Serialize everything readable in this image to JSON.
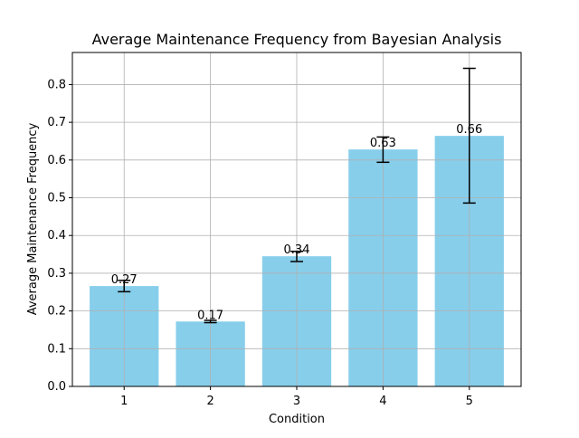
{
  "chart_data": {
    "type": "bar",
    "title": "Average Maintenance Frequency from Bayesian Analysis",
    "xlabel": "Condition",
    "ylabel": "Average Maintenance Frequency",
    "categories": [
      "1",
      "2",
      "3",
      "4",
      "5"
    ],
    "values": [
      0.266,
      0.172,
      0.345,
      0.628,
      0.664
    ],
    "data_labels": [
      "0.27",
      "0.17",
      "0.34",
      "0.63",
      "0.66"
    ],
    "error_lower": [
      0.251,
      0.169,
      0.331,
      0.594,
      0.486
    ],
    "error_upper": [
      0.281,
      0.175,
      0.358,
      0.661,
      0.843
    ],
    "ylim": [
      0,
      0.885
    ],
    "yticks": [
      "0.0",
      "0.1",
      "0.2",
      "0.3",
      "0.4",
      "0.5",
      "0.6",
      "0.7",
      "0.8"
    ],
    "grid": true,
    "bar_color": "#87ceeb",
    "error_color": "#000000",
    "grid_color": "#b0b0b0"
  }
}
